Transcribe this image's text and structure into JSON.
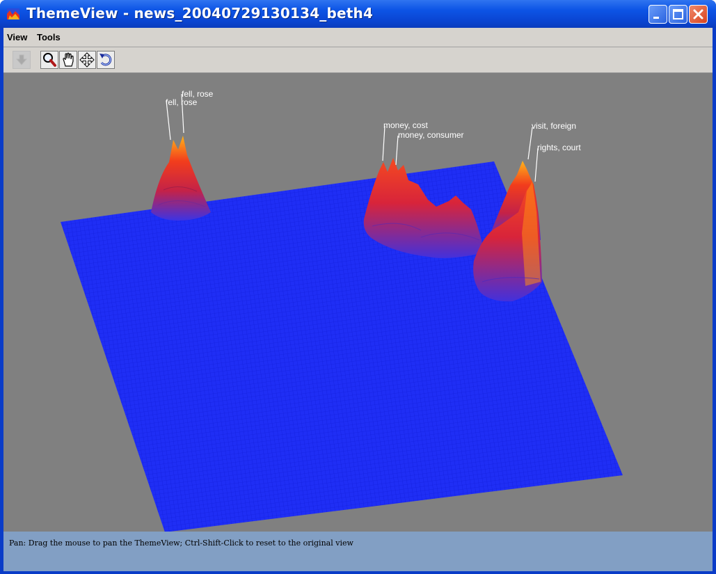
{
  "window": {
    "title": "ThemeView - news_20040729130134_beth4",
    "controls": [
      "minimize",
      "maximize",
      "close"
    ]
  },
  "menu": {
    "items": [
      {
        "label": "View"
      },
      {
        "label": "Tools"
      }
    ]
  },
  "toolbar": {
    "buttons": [
      {
        "icon": "down-arrow-icon",
        "enabled": false
      },
      {
        "icon": "magnifier-icon",
        "enabled": true
      },
      {
        "icon": "hand-icon",
        "enabled": true
      },
      {
        "icon": "move-arrows-icon",
        "enabled": true
      },
      {
        "icon": "rotate-icon",
        "enabled": true
      }
    ]
  },
  "themeview": {
    "surface_color": "#1f2ef5",
    "background_color": "#808080",
    "peak_labels": [
      {
        "text": "fell, rose"
      },
      {
        "text": "fell, rose"
      },
      {
        "text": "money, cost"
      },
      {
        "text": "money, consumer"
      },
      {
        "text": "visit, foreign"
      },
      {
        "text": "rights, court"
      }
    ]
  },
  "status": {
    "text": "Pan: Drag the mouse to pan the ThemeView; Ctrl-Shift-Click to reset to the original view"
  }
}
